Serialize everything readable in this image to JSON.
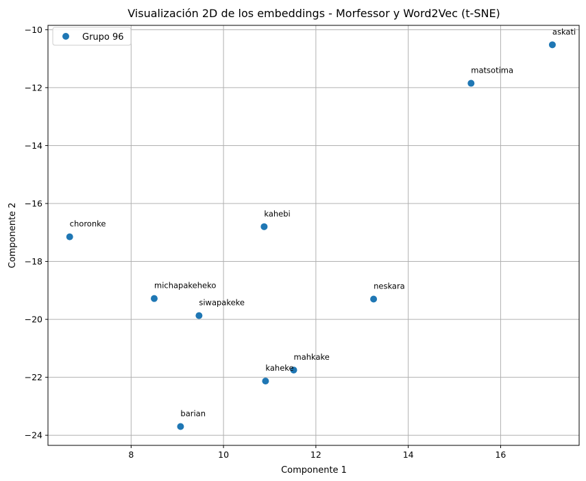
{
  "chart_data": {
    "type": "scatter",
    "title": "Visualización 2D de los embeddings - Morfessor y Word2Vec (t-SNE)",
    "xlabel": "Componente 1",
    "ylabel": "Componente 2",
    "xlim": [
      6.2,
      17.7
    ],
    "ylim": [
      -24.35,
      -9.85
    ],
    "xticks": [
      8,
      10,
      12,
      14,
      16
    ],
    "yticks": [
      -24,
      -22,
      -20,
      -18,
      -16,
      -14,
      -12,
      -10
    ],
    "xtick_labels": [
      "8",
      "10",
      "12",
      "14",
      "16"
    ],
    "ytick_labels": [
      "−24",
      "−22",
      "−20",
      "−18",
      "−16",
      "−14",
      "−12",
      "−10"
    ],
    "grid": true,
    "legend": {
      "placement": "top-left",
      "entries": [
        "Grupo 96"
      ]
    },
    "series": [
      {
        "name": "Grupo 96",
        "color": "#1f77b4",
        "points": [
          {
            "label": "askati",
            "x": 17.12,
            "y": -10.52
          },
          {
            "label": "matsotima",
            "x": 15.36,
            "y": -11.85
          },
          {
            "label": "kahebi",
            "x": 10.88,
            "y": -16.8
          },
          {
            "label": "choronke",
            "x": 6.67,
            "y": -17.15
          },
          {
            "label": "neskara",
            "x": 13.25,
            "y": -19.3
          },
          {
            "label": "michapakeheko",
            "x": 8.5,
            "y": -19.28
          },
          {
            "label": "siwapakeke",
            "x": 9.47,
            "y": -19.87
          },
          {
            "label": "mahkake",
            "x": 11.52,
            "y": -21.75
          },
          {
            "label": "kaheke",
            "x": 10.91,
            "y": -22.13
          },
          {
            "label": "barian",
            "x": 9.07,
            "y": -23.7
          }
        ]
      }
    ]
  }
}
